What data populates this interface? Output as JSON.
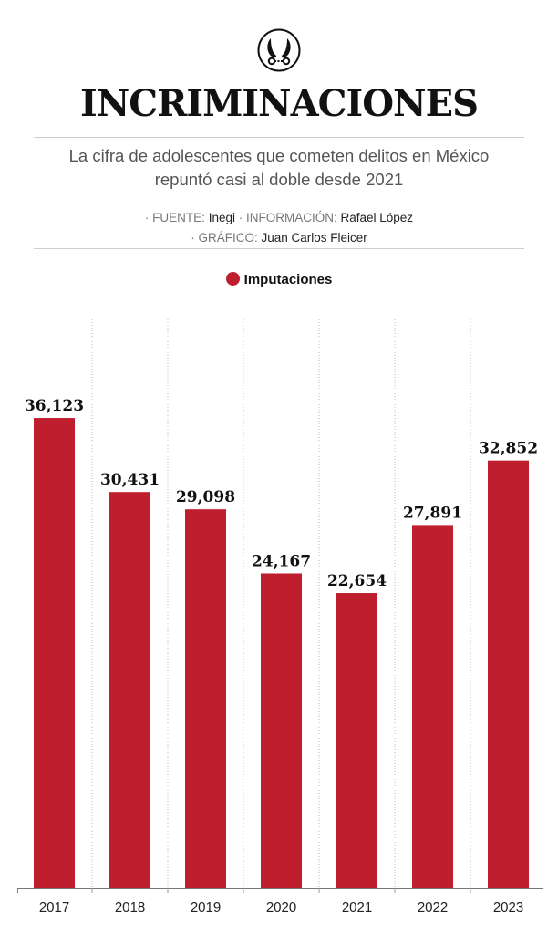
{
  "title": "INCRIMINACIONES",
  "subtitle_lines": [
    "La cifra de adolescentes que cometen delitos en México",
    "repuntó casi al doble desde 2021"
  ],
  "credits": {
    "source_label": "· FUENTE:",
    "source": "Inegi",
    "info_label": "· INFORMACIÓN:",
    "info": "Rafael López",
    "graphic_label": "· GRÁFICO:",
    "graphic": "Juan Carlos Fleicer"
  },
  "colors": {
    "bar": "#be1e2d",
    "text": "#111111"
  },
  "logo_icon": "handcuffs-icon",
  "chart_data": {
    "type": "bar",
    "categories": [
      "2017",
      "2018",
      "2019",
      "2020",
      "2021",
      "2022",
      "2023"
    ],
    "series": [
      {
        "name": "Imputaciones",
        "values": [
          36123,
          30431,
          29098,
          24167,
          22654,
          27891,
          32852
        ],
        "labels": [
          "36,123",
          "30,431",
          "29,098",
          "24,167",
          "22,654",
          "27,891",
          "32,852"
        ]
      }
    ],
    "ylim": [
      0,
      43000
    ],
    "grid": "vertical dotted separators",
    "legend": "top-center"
  }
}
